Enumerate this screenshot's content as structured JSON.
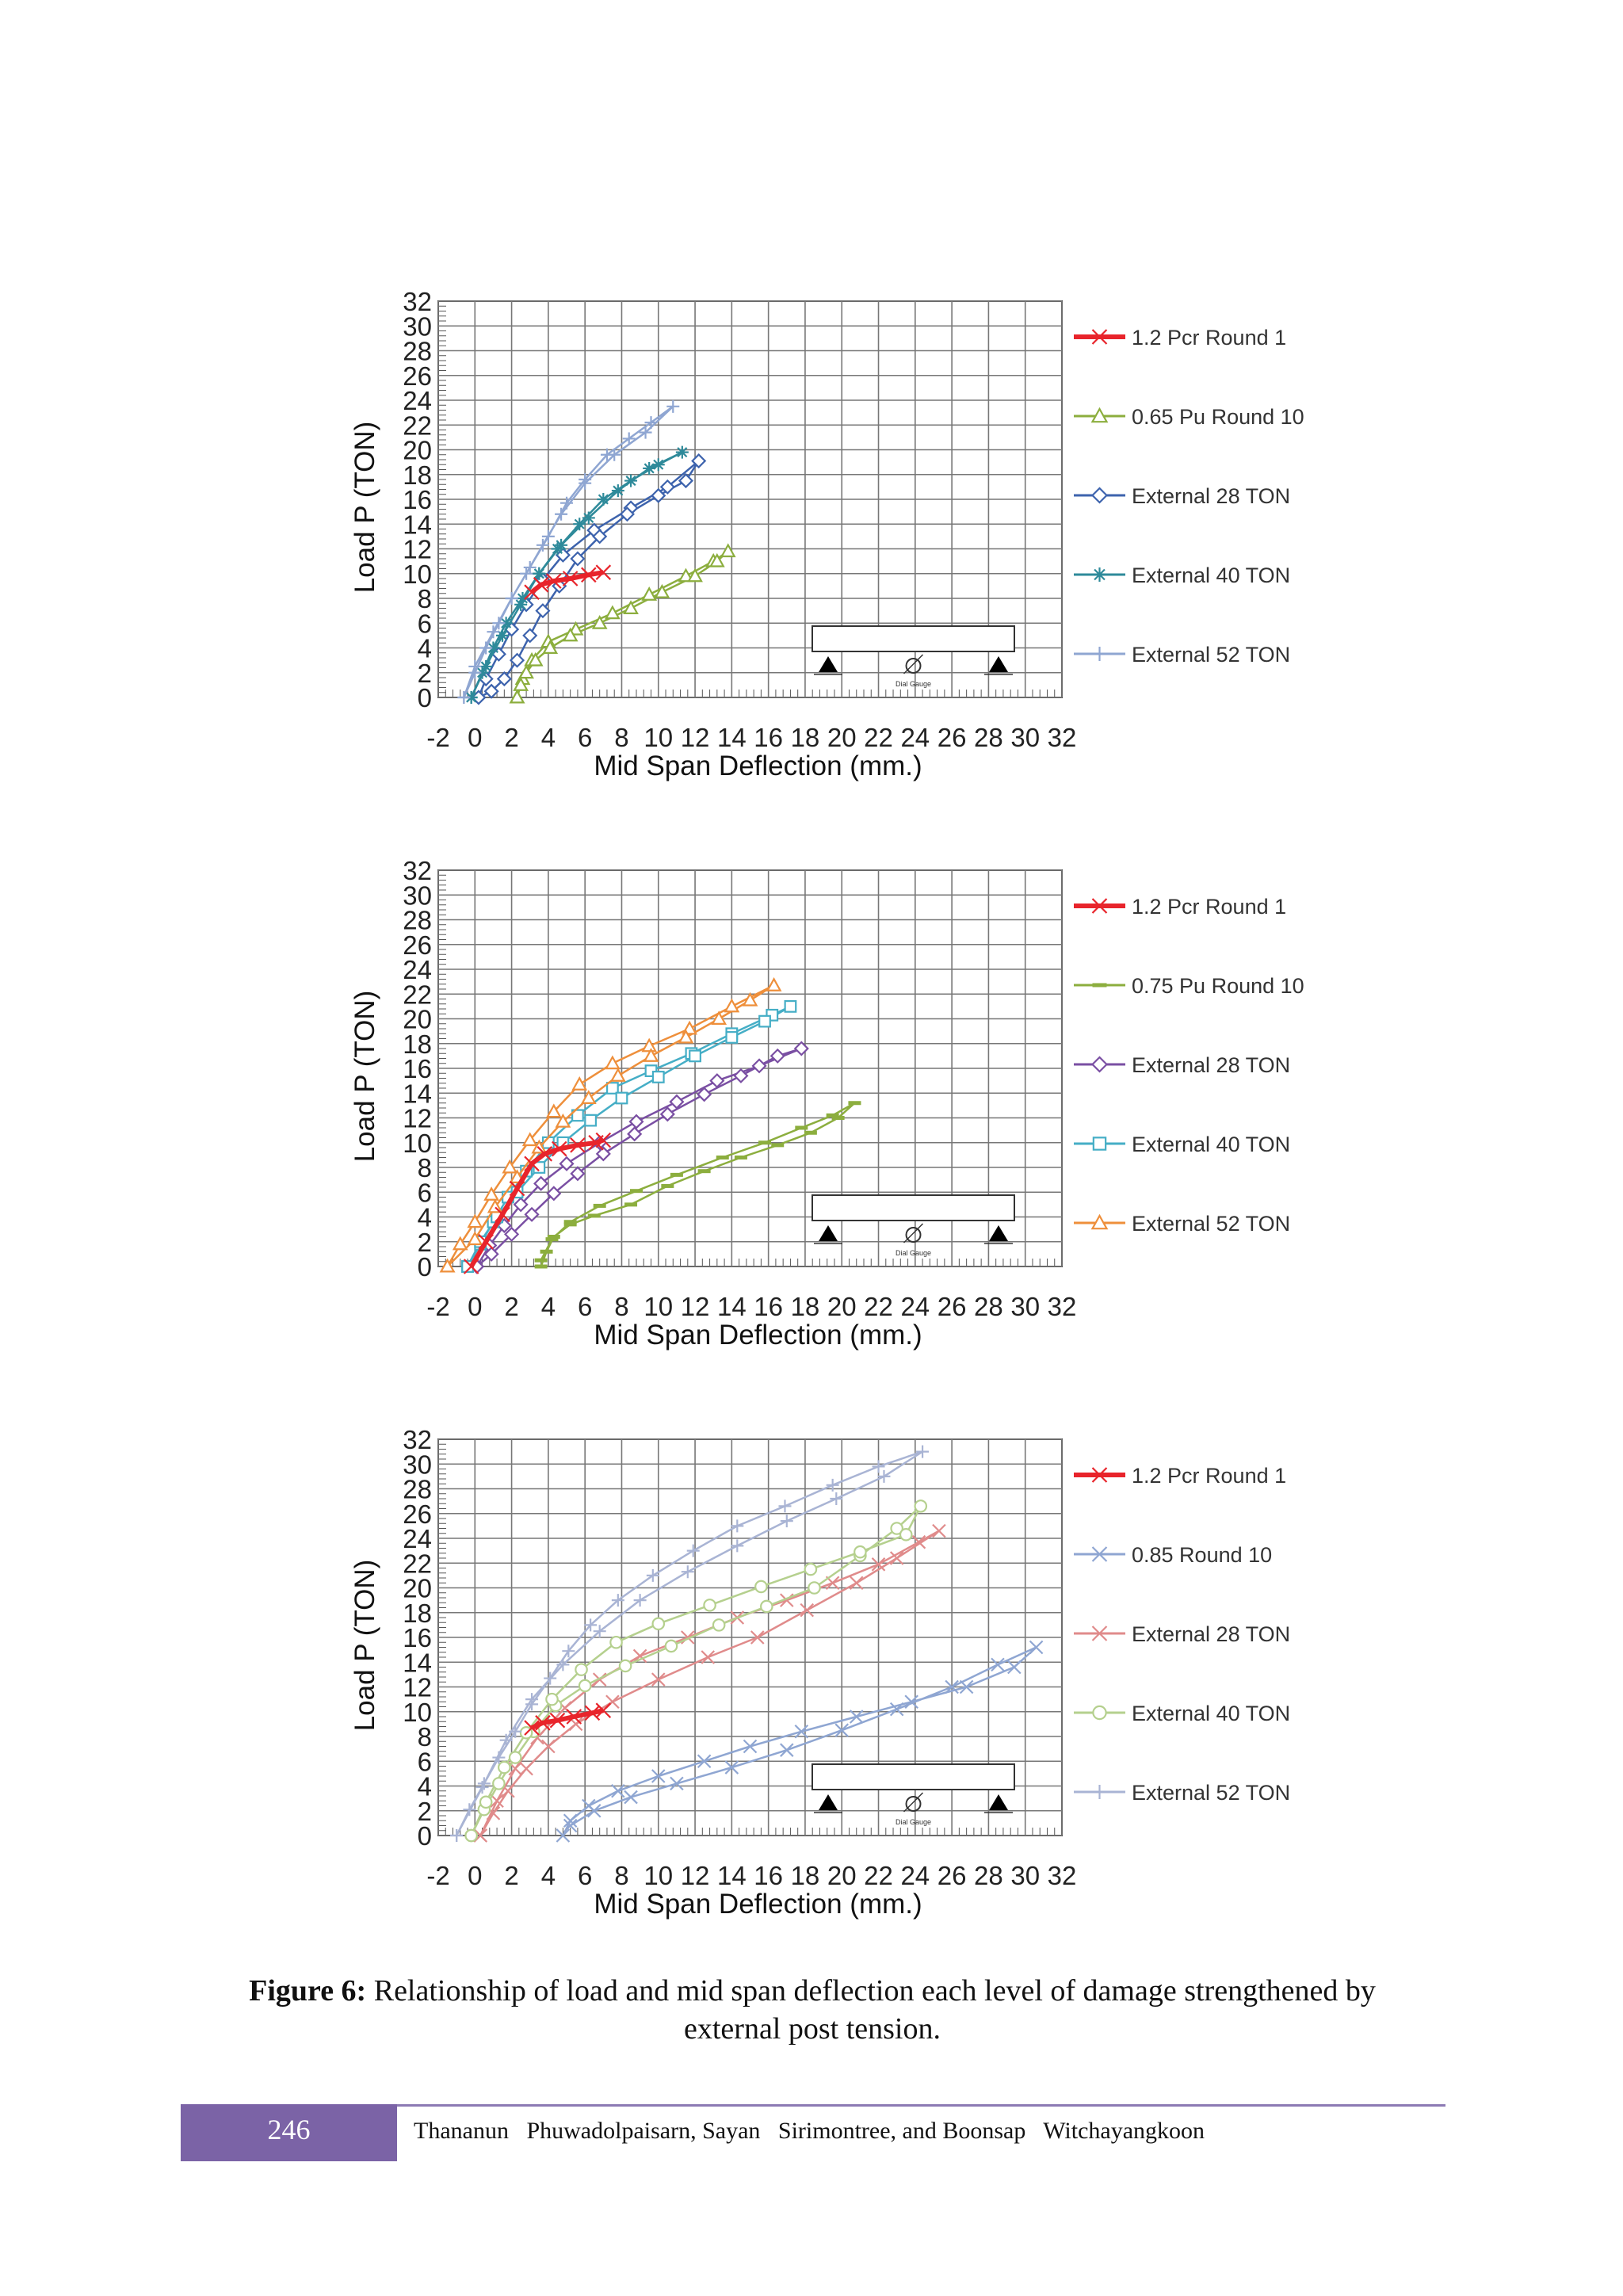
{
  "chart_data": [
    {
      "type": "line",
      "title": "",
      "xlabel": "Mid Span Deflection (mm.)",
      "ylabel": "Load P (TON)",
      "xlim": [
        -2,
        32
      ],
      "ylim": [
        0,
        32
      ],
      "xticks": [
        "-2",
        "0",
        "2",
        "4",
        "6",
        "8",
        "10",
        "12",
        "14",
        "16",
        "18",
        "20",
        "22",
        "24",
        "26",
        "28",
        "30",
        "32"
      ],
      "yticks": [
        "0",
        "2",
        "4",
        "6",
        "8",
        "10",
        "12",
        "14",
        "16",
        "18",
        "20",
        "22",
        "24",
        "26",
        "28",
        "30",
        "32"
      ],
      "grid": true,
      "legend_position": "right",
      "inset": "Dial Gauge",
      "series": [
        {
          "name": "1.2 Pcr Round 1",
          "color": "#e8242b",
          "marker": "x",
          "width": 6,
          "x": [
            3.1,
            3.6,
            4.3,
            5.2,
            6.2,
            7.0
          ],
          "y": [
            8.5,
            9.1,
            9.4,
            9.6,
            9.9,
            10.1
          ]
        },
        {
          "name": "0.65 Pu Round 10",
          "color": "#8cae3e",
          "marker": "triangle",
          "width": 2.5,
          "x": [
            2.3,
            2.6,
            3.1,
            4.0,
            5.5,
            7.5,
            9.5,
            11.5,
            13.0,
            13.8,
            13.2,
            12.0,
            10.2,
            8.5,
            6.8,
            5.2,
            4.1,
            3.3,
            2.8,
            2.5,
            2.3
          ],
          "y": [
            0,
            1.5,
            3.0,
            4.5,
            5.5,
            6.8,
            8.3,
            9.8,
            11.0,
            11.8,
            11.0,
            9.8,
            8.5,
            7.2,
            6.0,
            5.0,
            4.0,
            3.0,
            2.0,
            1.0,
            0
          ]
        },
        {
          "name": "External 28 TON",
          "color": "#3d63ad",
          "marker": "diamond",
          "width": 2.5,
          "x": [
            0.2,
            0.6,
            1.3,
            2.0,
            2.8,
            3.7,
            4.8,
            6.5,
            8.5,
            10.5,
            12.2,
            11.5,
            10.0,
            8.3,
            6.8,
            5.6,
            4.6,
            3.7,
            3.0,
            2.3,
            1.6,
            0.9,
            0.2
          ],
          "y": [
            0,
            1.5,
            3.5,
            5.5,
            7.5,
            9.5,
            11.5,
            13.5,
            15.3,
            17.0,
            19.1,
            17.5,
            16.3,
            14.8,
            13.0,
            11.2,
            9.0,
            7.0,
            5.0,
            3.0,
            1.5,
            0.5,
            0
          ]
        },
        {
          "name": "External 40 TON",
          "color": "#2e8a9a",
          "marker": "star",
          "width": 2.5,
          "x": [
            -0.2,
            0.4,
            1.0,
            1.7,
            2.6,
            3.5,
            4.7,
            6.2,
            7.8,
            9.5,
            11.3,
            10.0,
            8.5,
            7.0,
            5.7,
            4.5,
            3.5,
            2.5,
            1.5,
            0.6,
            -0.2
          ],
          "y": [
            0,
            2.0,
            4.0,
            6.0,
            8.0,
            10.0,
            12.3,
            14.5,
            16.7,
            18.5,
            19.8,
            18.8,
            17.5,
            16.0,
            14.0,
            12.0,
            10.0,
            7.5,
            5.0,
            2.5,
            0
          ]
        },
        {
          "name": "External 52 TON",
          "color": "#8fa6d2",
          "marker": "plus",
          "width": 2.5,
          "x": [
            -0.6,
            0.0,
            0.6,
            1.3,
            2.0,
            2.8,
            3.7,
            4.7,
            6.0,
            7.6,
            9.3,
            10.8,
            9.6,
            8.4,
            7.2,
            6.0,
            5.0,
            4.0,
            3.0,
            2.0,
            1.0,
            0.0,
            -0.6
          ],
          "y": [
            0,
            2.0,
            4.0,
            6.0,
            8.0,
            10.0,
            12.3,
            14.8,
            17.3,
            19.6,
            21.4,
            23.5,
            22.2,
            20.9,
            19.6,
            17.6,
            15.7,
            13.0,
            10.5,
            8.0,
            5.3,
            2.5,
            0
          ]
        }
      ]
    },
    {
      "type": "line",
      "title": "",
      "xlabel": "Mid Span Deflection (mm.)",
      "ylabel": "Load P (TON)",
      "xlim": [
        -2,
        32
      ],
      "ylim": [
        0,
        32
      ],
      "xticks": [
        "-2",
        "0",
        "2",
        "4",
        "6",
        "8",
        "10",
        "12",
        "14",
        "16",
        "18",
        "20",
        "22",
        "24",
        "26",
        "28",
        "30",
        "32"
      ],
      "yticks": [
        "0",
        "2",
        "4",
        "6",
        "8",
        "10",
        "12",
        "14",
        "16",
        "18",
        "20",
        "22",
        "24",
        "26",
        "28",
        "30",
        "32"
      ],
      "grid": true,
      "legend_position": "right",
      "inset": "Dial Gauge",
      "series": [
        {
          "name": "1.2 Pcr Round 1",
          "color": "#e8242b",
          "marker": "x",
          "width": 6,
          "x": [
            -0.2,
            0.6,
            1.5,
            2.3,
            3.1,
            3.8,
            4.6,
            5.6,
            6.6,
            7.0
          ],
          "y": [
            0,
            2.0,
            4.2,
            6.3,
            8.3,
            9.1,
            9.5,
            9.8,
            10.0,
            10.2
          ]
        },
        {
          "name": "0.75 Pu Round 10",
          "color": "#8cae3e",
          "marker": "dash",
          "width": 2.5,
          "x": [
            3.6,
            3.9,
            4.3,
            5.2,
            6.5,
            8.5,
            10.5,
            12.5,
            14.5,
            16.5,
            18.3,
            19.8,
            20.7,
            19.5,
            17.8,
            15.8,
            13.5,
            11.0,
            8.8,
            6.8,
            5.2,
            4.2,
            3.6
          ],
          "y": [
            0,
            1.2,
            2.4,
            3.4,
            4.1,
            5.0,
            6.5,
            7.7,
            8.8,
            9.8,
            10.8,
            12.0,
            13.2,
            12.2,
            11.2,
            10.0,
            8.8,
            7.4,
            6.1,
            4.9,
            3.6,
            2.2,
            0.5
          ]
        },
        {
          "name": "External 28 TON",
          "color": "#7a4fa3",
          "marker": "diamond",
          "width": 2.5,
          "x": [
            0.1,
            0.8,
            1.6,
            2.5,
            3.6,
            5.0,
            6.8,
            8.8,
            11.0,
            13.2,
            15.5,
            17.8,
            16.5,
            14.5,
            12.5,
            10.5,
            8.7,
            7.0,
            5.6,
            4.3,
            3.1,
            2.0,
            0.9,
            0.1
          ],
          "y": [
            0,
            1.7,
            3.3,
            5.0,
            6.7,
            8.3,
            10.0,
            11.7,
            13.3,
            15.0,
            16.2,
            17.6,
            17.0,
            15.4,
            13.9,
            12.3,
            10.7,
            9.1,
            7.5,
            5.9,
            4.2,
            2.6,
            1.0,
            0
          ]
        },
        {
          "name": "External 40 TON",
          "color": "#45aec6",
          "marker": "square",
          "width": 2.5,
          "x": [
            -0.4,
            0.3,
            1.0,
            1.8,
            2.8,
            4.0,
            5.6,
            7.5,
            9.6,
            11.8,
            14.0,
            16.2,
            17.2,
            15.8,
            14.0,
            12.0,
            10.0,
            8.0,
            6.3,
            4.8,
            3.5,
            2.3,
            1.2,
            0.3,
            -0.4
          ],
          "y": [
            0,
            1.8,
            3.6,
            5.6,
            7.7,
            10.0,
            12.2,
            14.4,
            15.8,
            17.2,
            18.8,
            20.3,
            21.0,
            19.8,
            18.5,
            17.0,
            15.3,
            13.6,
            11.8,
            10.0,
            8.0,
            6.0,
            4.0,
            2.0,
            0
          ]
        },
        {
          "name": "External 52 TON",
          "color": "#ee8f3b",
          "marker": "triangle",
          "width": 2.5,
          "x": [
            -1.5,
            -0.8,
            0.0,
            0.9,
            1.9,
            3.0,
            4.3,
            5.7,
            7.5,
            9.5,
            11.7,
            14.0,
            16.3,
            15.0,
            13.3,
            11.5,
            9.6,
            7.8,
            6.2,
            4.8,
            3.5,
            2.3,
            1.1,
            0.0,
            -1.5
          ],
          "y": [
            0,
            1.8,
            3.6,
            5.8,
            8.0,
            10.2,
            12.5,
            14.7,
            16.4,
            17.8,
            19.2,
            21.0,
            22.7,
            21.5,
            20.0,
            18.5,
            17.0,
            15.4,
            13.6,
            11.7,
            9.6,
            7.2,
            4.8,
            2.2,
            0
          ]
        }
      ]
    },
    {
      "type": "line",
      "title": "",
      "xlabel": "Mid Span Deflection (mm.)",
      "ylabel": "Load P (TON)",
      "xlim": [
        -2,
        32
      ],
      "ylim": [
        0,
        32
      ],
      "xticks": [
        "-2",
        "0",
        "2",
        "4",
        "6",
        "8",
        "10",
        "12",
        "14",
        "16",
        "18",
        "20",
        "22",
        "24",
        "26",
        "28",
        "30",
        "32"
      ],
      "yticks": [
        "0",
        "2",
        "4",
        "6",
        "8",
        "10",
        "12",
        "14",
        "16",
        "18",
        "20",
        "22",
        "24",
        "26",
        "28",
        "30",
        "32"
      ],
      "grid": true,
      "legend_position": "right",
      "inset": "Dial Gauge",
      "series": [
        {
          "name": "1.2 Pcr Round 1",
          "color": "#e8242b",
          "marker": "x",
          "width": 6,
          "x": [
            3.1,
            3.7,
            4.5,
            5.4,
            6.4,
            7.0
          ],
          "y": [
            8.7,
            9.1,
            9.3,
            9.6,
            9.9,
            10.1
          ]
        },
        {
          "name": "0.85 Round 10",
          "color": "#8fa6d2",
          "marker": "x",
          "width": 2.5,
          "x": [
            4.8,
            5.2,
            6.2,
            7.8,
            10.0,
            12.5,
            15.0,
            17.8,
            20.8,
            23.8,
            26.8,
            29.4,
            30.6,
            28.5,
            26.0,
            23.0,
            20.0,
            17.0,
            14.0,
            11.0,
            8.5,
            6.5,
            5.2
          ],
          "y": [
            0,
            1.2,
            2.4,
            3.6,
            4.8,
            6.0,
            7.2,
            8.4,
            9.6,
            10.8,
            12.0,
            13.6,
            15.2,
            13.8,
            12.0,
            10.2,
            8.5,
            6.9,
            5.5,
            4.2,
            3.1,
            2.0,
            0.8
          ]
        },
        {
          "name": "External 28 TON",
          "color": "#e08b8b",
          "marker": "x",
          "width": 2.5,
          "x": [
            0.3,
            1.0,
            1.8,
            2.8,
            4.0,
            5.5,
            7.5,
            10.0,
            12.7,
            15.4,
            18.1,
            20.8,
            23.0,
            25.3,
            24.2,
            22.0,
            19.5,
            17.0,
            14.3,
            11.6,
            9.0,
            6.8,
            4.9,
            3.4,
            2.2,
            1.2,
            0.3
          ],
          "y": [
            0,
            1.8,
            3.6,
            5.4,
            7.2,
            9.0,
            10.8,
            12.6,
            14.4,
            16.0,
            18.2,
            20.4,
            22.4,
            24.6,
            23.7,
            21.9,
            20.4,
            19.0,
            17.6,
            16.0,
            14.5,
            12.6,
            10.3,
            7.9,
            5.4,
            2.8,
            0
          ]
        },
        {
          "name": "External 40 TON",
          "color": "#b5d08e",
          "marker": "circle",
          "width": 2.5,
          "x": [
            -0.2,
            0.5,
            1.3,
            2.2,
            3.2,
            4.4,
            6.0,
            8.2,
            10.7,
            13.3,
            15.9,
            18.5,
            21.0,
            23.0,
            24.3,
            23.5,
            21.0,
            18.3,
            15.6,
            12.8,
            10.0,
            7.7,
            5.8,
            4.2,
            2.8,
            1.6,
            0.6,
            -0.2
          ],
          "y": [
            0,
            2.1,
            4.2,
            6.3,
            8.4,
            10.5,
            12.1,
            13.7,
            15.3,
            17.0,
            18.5,
            20.0,
            22.6,
            24.8,
            26.6,
            24.3,
            22.9,
            21.5,
            20.1,
            18.6,
            17.1,
            15.6,
            13.4,
            11.0,
            8.3,
            5.5,
            2.7,
            0
          ]
        },
        {
          "name": "External 52 TON",
          "color": "#a9b4d4",
          "marker": "plus",
          "width": 2.5,
          "x": [
            -1.0,
            -0.3,
            0.5,
            1.3,
            2.2,
            3.1,
            4.1,
            5.1,
            6.3,
            7.8,
            9.7,
            11.9,
            14.3,
            16.9,
            19.5,
            22.0,
            24.4,
            22.3,
            19.7,
            17.0,
            14.3,
            11.6,
            9.0,
            6.8,
            4.8,
            3.1,
            1.7,
            0.4,
            -1.0
          ],
          "y": [
            0,
            2.1,
            4.2,
            6.3,
            8.4,
            10.6,
            12.7,
            14.9,
            17.0,
            19.0,
            21.0,
            23.0,
            25.0,
            26.6,
            28.3,
            29.8,
            31.0,
            29.0,
            27.2,
            25.4,
            23.4,
            21.3,
            19.0,
            16.5,
            13.8,
            11.0,
            7.7,
            3.9,
            0
          ]
        }
      ]
    }
  ],
  "caption": {
    "label": "Figure 6:",
    "line1": "Relationship of load and mid span deflection each level of damage strengthened by",
    "line2": "external post tension."
  },
  "footer": {
    "page_number": "246",
    "authors": "Thananun   Phuwadolpaisarn, Sayan   Sirimontree, and Boonsap   Witchayangkoon"
  },
  "colors": {
    "grid": "#777777",
    "axis": "#444444",
    "footer_box": "#7b63a6",
    "footer_rule": "#8c7ab4"
  }
}
